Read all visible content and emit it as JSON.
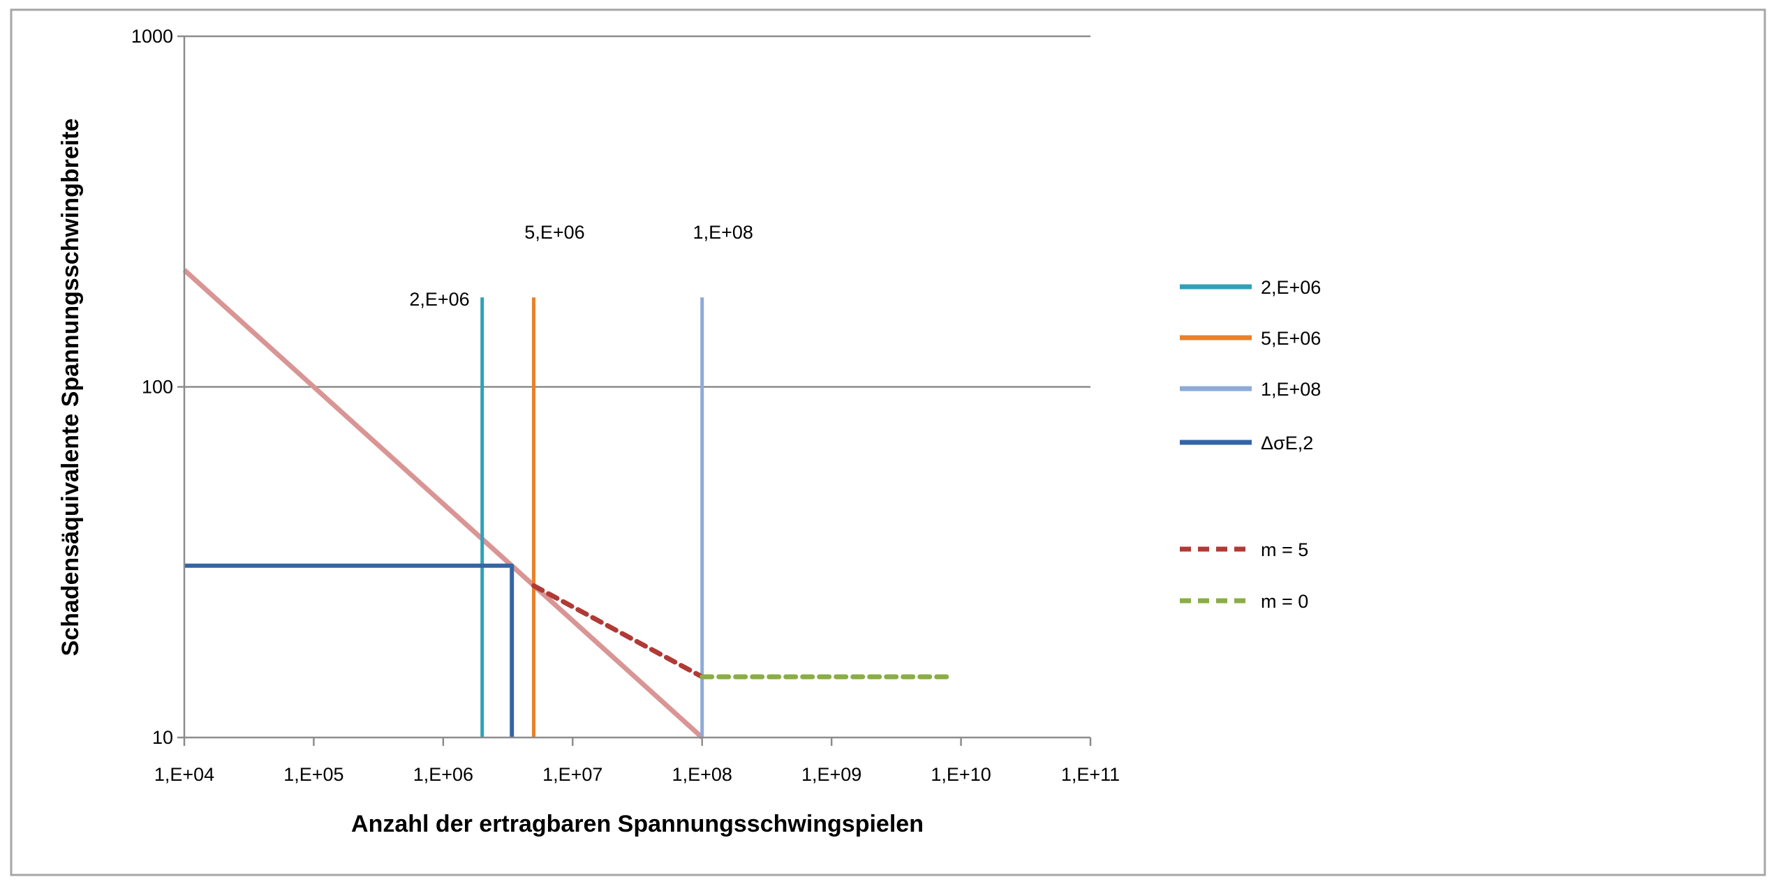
{
  "chart_data": {
    "type": "line",
    "title": "",
    "xlabel": "Anzahl der ertragbaren Spannungsschwingspielen",
    "ylabel": "Schadensäquivalente Spannungsschwingbreite",
    "xscale": "log",
    "yscale": "log",
    "xlim": [
      10000,
      100000000000
    ],
    "ylim": [
      10,
      1000
    ],
    "x_tick_labels": [
      "1,E+04",
      "1,E+05",
      "1,E+06",
      "1,E+07",
      "1,E+08",
      "1,E+09",
      "1,E+10",
      "1,E+11"
    ],
    "x_ticks": [
      10000.0,
      100000.0,
      1000000.0,
      10000000.0,
      100000000.0,
      1000000000.0,
      10000000000.0,
      100000000000.0
    ],
    "y_tick_labels": [
      "10",
      "100",
      "1000"
    ],
    "y_ticks": [
      10,
      100,
      1000
    ],
    "grid": "horizontal major",
    "legend_placement": "right",
    "series": [
      {
        "key": "sn",
        "color": "#d99594",
        "dash": false,
        "points": [
          [
            10000.0,
            215.4
          ],
          [
            100000000.0,
            10
          ]
        ]
      },
      {
        "key": "v2e6",
        "name": "2,E+06",
        "color": "#31a0b8",
        "dash": false,
        "points": [
          [
            2000000.0,
            10
          ],
          [
            2000000.0,
            180
          ]
        ]
      },
      {
        "key": "v5e6",
        "name": "5,E+06",
        "color": "#e8812c",
        "dash": false,
        "points": [
          [
            5000000.0,
            10
          ],
          [
            5000000.0,
            180
          ]
        ]
      },
      {
        "key": "v1e8",
        "name": "1,E+08",
        "color": "#8eaad8",
        "dash": false,
        "points": [
          [
            100000000.0,
            10
          ],
          [
            100000000.0,
            180
          ]
        ]
      },
      {
        "key": "dse2",
        "name": "ΔσE,2",
        "color": "#3465a4",
        "dash": false,
        "points": [
          [
            10000.0,
            30.9
          ],
          [
            3390000.0,
            30.9
          ],
          [
            3390000.0,
            10
          ]
        ]
      },
      {
        "key": "m5",
        "name": "m = 5",
        "color": "#b03a35",
        "dash": true,
        "points": [
          [
            5000000.0,
            27.1
          ],
          [
            100000000.0,
            14.9
          ]
        ]
      },
      {
        "key": "m0",
        "name": " m = 0",
        "color": "#8aad45",
        "dash": true,
        "points": [
          [
            100000000.0,
            14.9
          ],
          [
            8500000000.0,
            14.9
          ]
        ]
      }
    ],
    "annotations": [
      {
        "text": "2,E+06",
        "x": 2000000.0,
        "y": 180,
        "anchor": "left"
      },
      {
        "text": "5,E+06",
        "x": 5000000.0,
        "y": 265
      },
      {
        "text": "1,E+08",
        "x": 100000000.0,
        "y": 265
      }
    ]
  }
}
